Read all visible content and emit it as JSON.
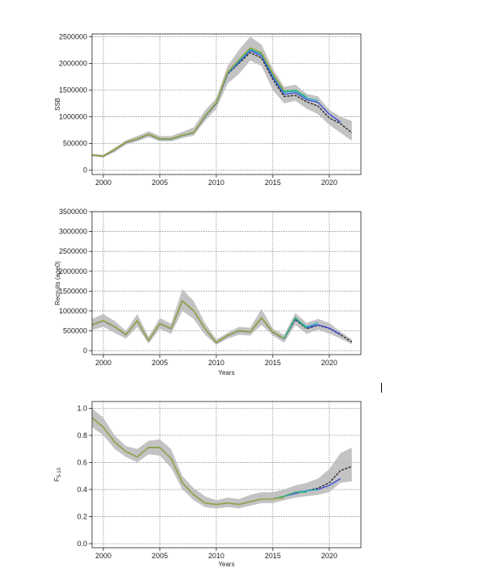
{
  "chart_data": [
    {
      "type": "line",
      "title": "",
      "xlabel": "",
      "ylabel": "SSB",
      "xlim": [
        1999,
        2022.8
      ],
      "ylim": [
        -80000,
        2550000
      ],
      "xticks": [
        2000,
        2005,
        2010,
        2015,
        2020
      ],
      "yticks": [
        0,
        500000,
        1000000,
        1500000,
        2000000,
        2500000
      ],
      "grid": true,
      "band": {
        "x": [
          1999,
          2000,
          2001,
          2002,
          2003,
          2004,
          2005,
          2006,
          2007,
          2008,
          2009,
          2010,
          2011,
          2012,
          2013,
          2014,
          2015,
          2016,
          2017,
          2018,
          2019,
          2020,
          2021,
          2022
        ],
        "lower": [
          265000,
          240000,
          340000,
          480000,
          540000,
          620000,
          540000,
          540000,
          600000,
          650000,
          920000,
          1150000,
          1620000,
          1800000,
          2050000,
          1950000,
          1500000,
          1250000,
          1300000,
          1150000,
          1050000,
          850000,
          700000,
          550000
        ],
        "upper": [
          305000,
          290000,
          420000,
          560000,
          640000,
          730000,
          640000,
          640000,
          720000,
          800000,
          1120000,
          1350000,
          1950000,
          2250000,
          2500000,
          2350000,
          1900000,
          1560000,
          1600000,
          1430000,
          1380000,
          1130000,
          1000000,
          920000
        ]
      },
      "series": [
        {
          "color": "#2a2a2a",
          "x": [
            1999,
            2000,
            2001,
            2002,
            2003,
            2004,
            2005,
            2006,
            2007,
            2008,
            2009,
            2010,
            2011,
            2012,
            2013,
            2014,
            2015,
            2016,
            2017,
            2018,
            2019,
            2020,
            2021,
            2022
          ],
          "values": [
            280000,
            260000,
            380000,
            520000,
            580000,
            670000,
            580000,
            580000,
            650000,
            700000,
            1000000,
            1250000,
            1800000,
            2000000,
            2200000,
            2100000,
            1700000,
            1380000,
            1400000,
            1280000,
            1200000,
            980000,
            870000,
            700000
          ]
        },
        {
          "color": "#3e4fd6",
          "x": [
            1999,
            2000,
            2001,
            2002,
            2003,
            2004,
            2005,
            2006,
            2007,
            2008,
            2009,
            2010,
            2011,
            2012,
            2013,
            2014,
            2015,
            2016,
            2017,
            2018,
            2019,
            2020,
            2021
          ],
          "values": [
            280000,
            262000,
            382000,
            522000,
            582000,
            672000,
            582000,
            582000,
            652000,
            702000,
            1005000,
            1255000,
            1810000,
            2020000,
            2240000,
            2140000,
            1740000,
            1420000,
            1450000,
            1320000,
            1270000,
            1050000,
            900000
          ]
        },
        {
          "color": "#27b0c8",
          "x": [
            1999,
            2000,
            2001,
            2002,
            2003,
            2004,
            2005,
            2006,
            2007,
            2008,
            2009,
            2010,
            2011,
            2012,
            2013,
            2014,
            2015,
            2016,
            2017,
            2018,
            2019
          ],
          "values": [
            281000,
            263000,
            384000,
            524000,
            584000,
            674000,
            584000,
            584000,
            654000,
            704000,
            1010000,
            1260000,
            1820000,
            2040000,
            2260000,
            2170000,
            1780000,
            1460000,
            1480000,
            1350000,
            1300000
          ]
        },
        {
          "color": "#3cb371",
          "x": [
            1999,
            2000,
            2001,
            2002,
            2003,
            2004,
            2005,
            2006,
            2007,
            2008,
            2009,
            2010,
            2011,
            2012,
            2013,
            2014,
            2015,
            2016,
            2017,
            2018
          ],
          "values": [
            282000,
            264000,
            386000,
            526000,
            586000,
            676000,
            586000,
            586000,
            656000,
            706000,
            1015000,
            1265000,
            1830000,
            2060000,
            2280000,
            2190000,
            1800000,
            1480000,
            1500000,
            1370000
          ]
        },
        {
          "color": "#a2a33a",
          "x": [
            1999,
            2000,
            2001,
            2002,
            2003,
            2004,
            2005,
            2006,
            2007,
            2008,
            2009,
            2010,
            2011,
            2012,
            2013,
            2014,
            2015,
            2016
          ],
          "values": [
            283000,
            265000,
            388000,
            528000,
            588000,
            678000,
            588000,
            588000,
            658000,
            708000,
            1018000,
            1268000,
            1840000,
            2070000,
            2290000,
            2200000,
            1810000,
            1490000
          ]
        }
      ]
    },
    {
      "type": "line",
      "title": "",
      "xlabel": "Years",
      "ylabel": "Recruits (age0)",
      "xlim": [
        1999,
        2022.8
      ],
      "ylim": [
        -100000,
        3500000
      ],
      "xticks": [
        2000,
        2005,
        2010,
        2015,
        2020
      ],
      "yticks": [
        0,
        500000,
        1000000,
        1500000,
        2000000,
        2500000,
        3000000,
        3500000
      ],
      "grid": true,
      "band": {
        "x": [
          1999,
          2000,
          2001,
          2002,
          2003,
          2004,
          2005,
          2006,
          2007,
          2008,
          2009,
          2010,
          2011,
          2012,
          2013,
          2014,
          2015,
          2016,
          2017,
          2018,
          2019,
          2020,
          2021,
          2022
        ],
        "lower": [
          520000,
          600000,
          450000,
          300000,
          600000,
          180000,
          550000,
          420000,
          1000000,
          800000,
          400000,
          150000,
          300000,
          400000,
          380000,
          650000,
          380000,
          200000,
          650000,
          420000,
          530000,
          430000,
          300000,
          160000
        ],
        "upper": [
          800000,
          920000,
          750000,
          500000,
          920000,
          350000,
          820000,
          680000,
          1550000,
          1250000,
          700000,
          280000,
          450000,
          600000,
          580000,
          1050000,
          560000,
          400000,
          950000,
          700000,
          800000,
          700000,
          480000,
          280000
        ]
      },
      "series": [
        {
          "color": "#2a2a2a",
          "x": [
            1999,
            2000,
            2001,
            2002,
            2003,
            2004,
            2005,
            2006,
            2007,
            2008,
            2009,
            2010,
            2011,
            2012,
            2013,
            2014,
            2015,
            2016,
            2017,
            2018,
            2019,
            2020,
            2021,
            2022
          ],
          "values": [
            650000,
            750000,
            600000,
            400000,
            750000,
            250000,
            680000,
            550000,
            1250000,
            1000000,
            550000,
            200000,
            380000,
            500000,
            470000,
            820000,
            460000,
            300000,
            780000,
            550000,
            640000,
            560000,
            400000,
            220000
          ]
        },
        {
          "color": "#3e4fd6",
          "x": [
            1999,
            2000,
            2001,
            2002,
            2003,
            2004,
            2005,
            2006,
            2007,
            2008,
            2009,
            2010,
            2011,
            2012,
            2013,
            2014,
            2015,
            2016,
            2017,
            2018,
            2019,
            2020,
            2021
          ],
          "values": [
            652000,
            752000,
            602000,
            402000,
            752000,
            252000,
            682000,
            552000,
            1252000,
            1002000,
            552000,
            202000,
            382000,
            502000,
            472000,
            825000,
            465000,
            305000,
            800000,
            580000,
            650000,
            570000,
            410000
          ]
        },
        {
          "color": "#27b0c8",
          "x": [
            1999,
            2000,
            2001,
            2002,
            2003,
            2004,
            2005,
            2006,
            2007,
            2008,
            2009,
            2010,
            2011,
            2012,
            2013,
            2014,
            2015,
            2016,
            2017,
            2018,
            2019
          ],
          "values": [
            654000,
            754000,
            604000,
            404000,
            754000,
            254000,
            684000,
            554000,
            1254000,
            1004000,
            554000,
            204000,
            384000,
            504000,
            474000,
            828000,
            468000,
            308000,
            820000,
            600000,
            700000
          ]
        },
        {
          "color": "#3cb371",
          "x": [
            1999,
            2000,
            2001,
            2002,
            2003,
            2004,
            2005,
            2006,
            2007,
            2008,
            2009,
            2010,
            2011,
            2012,
            2013,
            2014,
            2015,
            2016,
            2017,
            2018
          ],
          "values": [
            656000,
            756000,
            606000,
            406000,
            756000,
            256000,
            686000,
            556000,
            1256000,
            1006000,
            556000,
            206000,
            386000,
            506000,
            476000,
            830000,
            470000,
            310000,
            830000,
            560000
          ]
        },
        {
          "color": "#a2a33a",
          "x": [
            1999,
            2000,
            2001,
            2002,
            2003,
            2004,
            2005,
            2006,
            2007,
            2008,
            2009,
            2010,
            2011,
            2012,
            2013,
            2014,
            2015,
            2016
          ],
          "values": [
            658000,
            758000,
            608000,
            408000,
            758000,
            258000,
            688000,
            558000,
            1258000,
            1008000,
            558000,
            208000,
            388000,
            508000,
            478000,
            832000,
            472000,
            312000
          ]
        }
      ]
    },
    {
      "type": "line",
      "title": "",
      "xlabel": "Years",
      "ylabel": "F5-10",
      "xlim": [
        1999,
        2022.8
      ],
      "ylim": [
        -0.03,
        1.05
      ],
      "xticks": [
        2000,
        2005,
        2010,
        2015,
        2020
      ],
      "yticks": [
        0.0,
        0.2,
        0.4,
        0.6,
        0.8,
        1.0
      ],
      "ytick_labels": [
        "0.0",
        "0.2",
        "0.4",
        "0.6",
        "0.8",
        "1.0"
      ],
      "grid": true,
      "band": {
        "x": [
          1999,
          2000,
          2001,
          2002,
          2003,
          2004,
          2005,
          2006,
          2007,
          2008,
          2009,
          2010,
          2011,
          2012,
          2013,
          2014,
          2015,
          2016,
          2017,
          2018,
          2019,
          2020,
          2021,
          2022
        ],
        "lower": [
          0.86,
          0.8,
          0.7,
          0.64,
          0.6,
          0.66,
          0.65,
          0.56,
          0.4,
          0.32,
          0.27,
          0.26,
          0.27,
          0.26,
          0.28,
          0.3,
          0.3,
          0.32,
          0.34,
          0.35,
          0.36,
          0.38,
          0.45,
          0.46
        ],
        "upper": [
          1.0,
          0.93,
          0.8,
          0.72,
          0.7,
          0.76,
          0.77,
          0.7,
          0.5,
          0.41,
          0.35,
          0.32,
          0.34,
          0.33,
          0.36,
          0.38,
          0.38,
          0.4,
          0.43,
          0.45,
          0.48,
          0.55,
          0.67,
          0.71
        ]
      },
      "series": [
        {
          "color": "#2a2a2a",
          "x": [
            1999,
            2000,
            2001,
            2002,
            2003,
            2004,
            2005,
            2006,
            2007,
            2008,
            2009,
            2010,
            2011,
            2012,
            2013,
            2014,
            2015,
            2016,
            2017,
            2018,
            2019,
            2020,
            2021,
            2022
          ],
          "values": [
            0.93,
            0.86,
            0.75,
            0.68,
            0.64,
            0.71,
            0.71,
            0.63,
            0.45,
            0.36,
            0.3,
            0.29,
            0.3,
            0.29,
            0.31,
            0.33,
            0.33,
            0.35,
            0.38,
            0.39,
            0.41,
            0.45,
            0.54,
            0.57
          ]
        },
        {
          "color": "#3e4fd6",
          "x": [
            1999,
            2000,
            2001,
            2002,
            2003,
            2004,
            2005,
            2006,
            2007,
            2008,
            2009,
            2010,
            2011,
            2012,
            2013,
            2014,
            2015,
            2016,
            2017,
            2018,
            2019,
            2020,
            2021
          ],
          "values": [
            0.93,
            0.86,
            0.75,
            0.68,
            0.64,
            0.71,
            0.71,
            0.63,
            0.45,
            0.36,
            0.3,
            0.29,
            0.3,
            0.29,
            0.31,
            0.33,
            0.33,
            0.35,
            0.37,
            0.39,
            0.4,
            0.43,
            0.48
          ]
        },
        {
          "color": "#27b0c8",
          "x": [
            1999,
            2000,
            2001,
            2002,
            2003,
            2004,
            2005,
            2006,
            2007,
            2008,
            2009,
            2010,
            2011,
            2012,
            2013,
            2014,
            2015,
            2016,
            2017,
            2018,
            2019
          ],
          "values": [
            0.93,
            0.86,
            0.75,
            0.68,
            0.64,
            0.71,
            0.71,
            0.63,
            0.45,
            0.36,
            0.3,
            0.29,
            0.3,
            0.29,
            0.31,
            0.33,
            0.33,
            0.35,
            0.38,
            0.39,
            0.4
          ]
        },
        {
          "color": "#3cb371",
          "x": [
            1999,
            2000,
            2001,
            2002,
            2003,
            2004,
            2005,
            2006,
            2007,
            2008,
            2009,
            2010,
            2011,
            2012,
            2013,
            2014,
            2015,
            2016,
            2017,
            2018
          ],
          "values": [
            0.93,
            0.86,
            0.75,
            0.68,
            0.64,
            0.71,
            0.71,
            0.63,
            0.45,
            0.36,
            0.3,
            0.29,
            0.3,
            0.29,
            0.31,
            0.33,
            0.33,
            0.35,
            0.38,
            0.38
          ]
        },
        {
          "color": "#a2a33a",
          "x": [
            1999,
            2000,
            2001,
            2002,
            2003,
            2004,
            2005,
            2006,
            2007,
            2008,
            2009,
            2010,
            2011,
            2012,
            2013,
            2014,
            2015,
            2016
          ],
          "values": [
            0.93,
            0.86,
            0.75,
            0.68,
            0.64,
            0.71,
            0.71,
            0.63,
            0.45,
            0.36,
            0.3,
            0.29,
            0.3,
            0.29,
            0.31,
            0.33,
            0.33,
            0.34
          ]
        }
      ]
    }
  ]
}
